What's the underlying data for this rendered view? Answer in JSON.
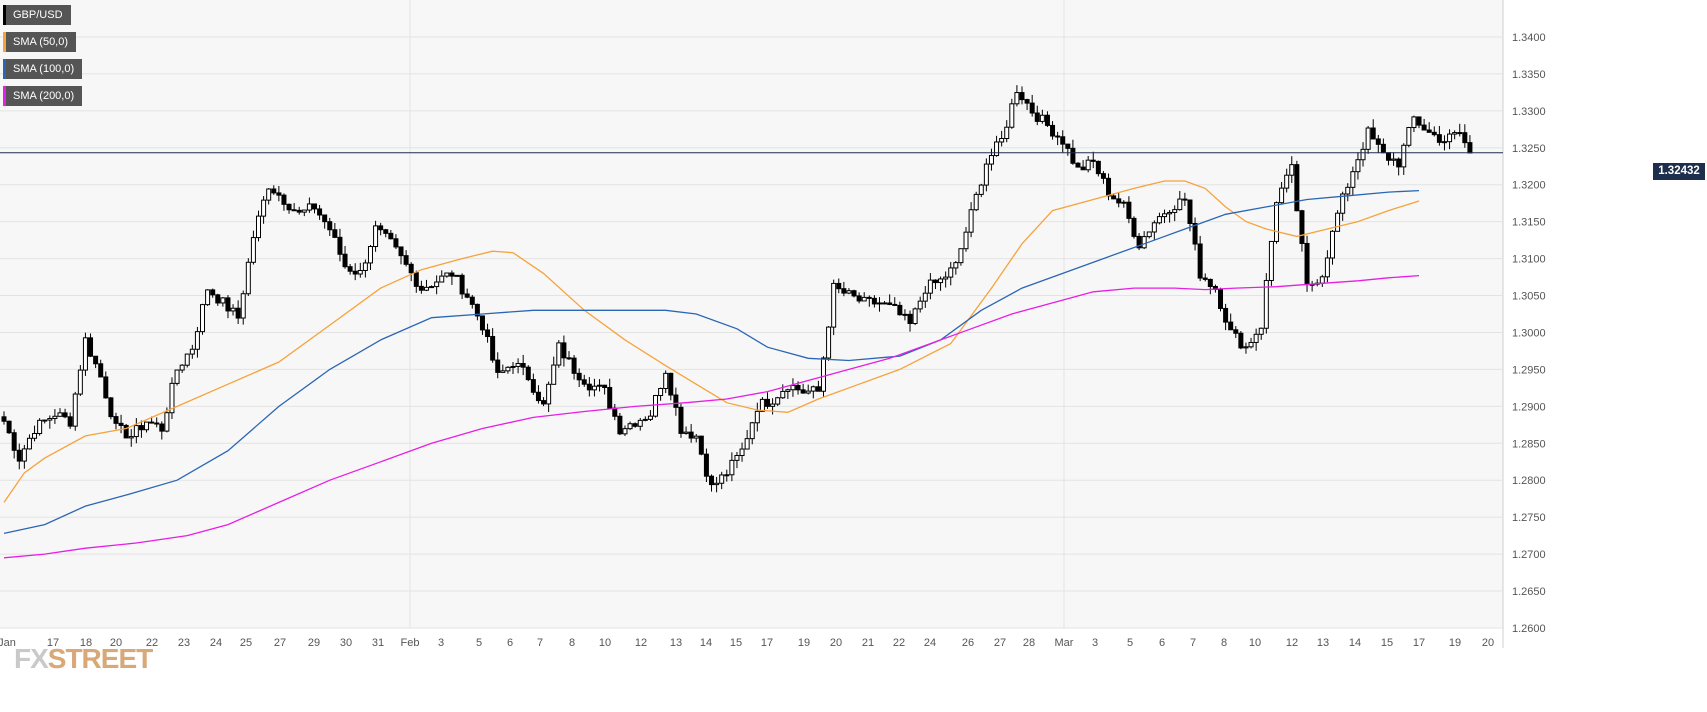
{
  "chart_data": {
    "type": "candlestick",
    "symbol": "GBP/USD",
    "last_price": "1.32432",
    "ylim": [
      1.26,
      1.345
    ],
    "y_ticks": [
      "1.2600",
      "1.2650",
      "1.2700",
      "1.2750",
      "1.2800",
      "1.2850",
      "1.2900",
      "1.2950",
      "1.3000",
      "1.3050",
      "1.3100",
      "1.3150",
      "1.3200",
      "1.3250",
      "1.3300",
      "1.3350",
      "1.3400"
    ],
    "x_ticks": [
      "Jan",
      "17",
      "18",
      "20",
      "22",
      "23",
      "24",
      "25",
      "27",
      "29",
      "30",
      "31",
      "Feb",
      "3",
      "5",
      "6",
      "7",
      "8",
      "10",
      "12",
      "13",
      "14",
      "15",
      "17",
      "19",
      "20",
      "21",
      "22",
      "24",
      "26",
      "27",
      "28",
      "Mar",
      "3",
      "5",
      "6",
      "7",
      "8",
      "10",
      "12",
      "13",
      "14",
      "15",
      "17",
      "19",
      "20"
    ],
    "legend": [
      {
        "label": "GBP/USD",
        "color": "#000000"
      },
      {
        "label": "SMA (50,0)",
        "color": "#f7a23b"
      },
      {
        "label": "SMA (100,0)",
        "color": "#2a66b4"
      },
      {
        "label": "SMA (200,0)",
        "color": "#e61ee6"
      }
    ],
    "series": [
      {
        "name": "SMA (50,0)",
        "color": "#f7a23b",
        "points": [
          [
            0,
            1.277
          ],
          [
            4,
            1.281
          ],
          [
            8,
            1.283
          ],
          [
            16,
            1.286
          ],
          [
            24,
            1.287
          ],
          [
            34,
            1.29
          ],
          [
            44,
            1.293
          ],
          [
            54,
            1.296
          ],
          [
            64,
            1.301
          ],
          [
            74,
            1.306
          ],
          [
            82,
            1.3085
          ],
          [
            90,
            1.31
          ],
          [
            96,
            1.311
          ],
          [
            100,
            1.3108
          ],
          [
            106,
            1.308
          ],
          [
            114,
            1.303
          ],
          [
            122,
            1.299
          ],
          [
            130,
            1.2955
          ],
          [
            136,
            1.293
          ],
          [
            142,
            1.2905
          ],
          [
            148,
            1.2895
          ],
          [
            154,
            1.2892
          ],
          [
            160,
            1.291
          ],
          [
            168,
            1.293
          ],
          [
            176,
            1.295
          ],
          [
            186,
            1.2985
          ],
          [
            194,
            1.306
          ],
          [
            200,
            1.312
          ],
          [
            206,
            1.3165
          ],
          [
            214,
            1.318
          ],
          [
            222,
            1.3195
          ],
          [
            228,
            1.3205
          ],
          [
            232,
            1.3205
          ],
          [
            236,
            1.3195
          ],
          [
            240,
            1.317
          ],
          [
            244,
            1.315
          ],
          [
            248,
            1.314
          ],
          [
            254,
            1.313
          ],
          [
            260,
            1.314
          ],
          [
            266,
            1.315
          ],
          [
            272,
            1.3165
          ],
          [
            278,
            1.3178
          ]
        ]
      },
      {
        "name": "SMA (100,0)",
        "color": "#2a66b4",
        "points": [
          [
            0,
            1.2728
          ],
          [
            8,
            1.274
          ],
          [
            16,
            1.2765
          ],
          [
            24,
            1.278
          ],
          [
            34,
            1.28
          ],
          [
            44,
            1.284
          ],
          [
            54,
            1.29
          ],
          [
            64,
            1.295
          ],
          [
            74,
            1.299
          ],
          [
            84,
            1.302
          ],
          [
            94,
            1.3025
          ],
          [
            104,
            1.303
          ],
          [
            112,
            1.303
          ],
          [
            120,
            1.303
          ],
          [
            130,
            1.303
          ],
          [
            136,
            1.3025
          ],
          [
            144,
            1.3005
          ],
          [
            150,
            1.298
          ],
          [
            158,
            1.2965
          ],
          [
            166,
            1.2962
          ],
          [
            176,
            1.2968
          ],
          [
            184,
            1.299
          ],
          [
            192,
            1.303
          ],
          [
            200,
            1.306
          ],
          [
            208,
            1.308
          ],
          [
            216,
            1.31
          ],
          [
            224,
            1.312
          ],
          [
            232,
            1.314
          ],
          [
            240,
            1.316
          ],
          [
            248,
            1.317
          ],
          [
            256,
            1.318
          ],
          [
            264,
            1.3185
          ],
          [
            272,
            1.319
          ],
          [
            278,
            1.3192
          ]
        ]
      },
      {
        "name": "SMA (200,0)",
        "color": "#e61ee6",
        "points": [
          [
            0,
            1.2695
          ],
          [
            8,
            1.27
          ],
          [
            16,
            1.2708
          ],
          [
            26,
            1.2715
          ],
          [
            36,
            1.2725
          ],
          [
            44,
            1.274
          ],
          [
            54,
            1.277
          ],
          [
            64,
            1.28
          ],
          [
            74,
            1.2825
          ],
          [
            84,
            1.285
          ],
          [
            94,
            1.287
          ],
          [
            104,
            1.2885
          ],
          [
            114,
            1.2893
          ],
          [
            124,
            1.29
          ],
          [
            134,
            1.2905
          ],
          [
            142,
            1.291
          ],
          [
            150,
            1.292
          ],
          [
            158,
            1.2935
          ],
          [
            166,
            1.295
          ],
          [
            174,
            1.2965
          ],
          [
            182,
            1.2985
          ],
          [
            190,
            1.3005
          ],
          [
            198,
            1.3025
          ],
          [
            206,
            1.304
          ],
          [
            214,
            1.3055
          ],
          [
            222,
            1.306
          ],
          [
            230,
            1.306
          ],
          [
            236,
            1.3058
          ],
          [
            242,
            1.306
          ],
          [
            250,
            1.3062
          ],
          [
            258,
            1.3066
          ],
          [
            266,
            1.307
          ],
          [
            272,
            1.3074
          ],
          [
            278,
            1.3077
          ]
        ]
      }
    ],
    "waypoints": [
      [
        0,
        1.288
      ],
      [
        3,
        1.283
      ],
      [
        6,
        1.287
      ],
      [
        10,
        1.289
      ],
      [
        13,
        1.288
      ],
      [
        16,
        1.299
      ],
      [
        19,
        1.294
      ],
      [
        22,
        1.287
      ],
      [
        25,
        1.286
      ],
      [
        28,
        1.288
      ],
      [
        31,
        1.287
      ],
      [
        34,
        1.295
      ],
      [
        37,
        1.298
      ],
      [
        40,
        1.306
      ],
      [
        43,
        1.304
      ],
      [
        46,
        1.302
      ],
      [
        49,
        1.313
      ],
      [
        52,
        1.32
      ],
      [
        55,
        1.318
      ],
      [
        58,
        1.316
      ],
      [
        61,
        1.317
      ],
      [
        64,
        1.314
      ],
      [
        67,
        1.309
      ],
      [
        70,
        1.308
      ],
      [
        73,
        1.314
      ],
      [
        76,
        1.312
      ],
      [
        79,
        1.309
      ],
      [
        82,
        1.306
      ],
      [
        85,
        1.307
      ],
      [
        88,
        1.308
      ],
      [
        91,
        1.305
      ],
      [
        94,
        1.301
      ],
      [
        97,
        1.294
      ],
      [
        100,
        1.296
      ],
      [
        103,
        1.294
      ],
      [
        106,
        1.29
      ],
      [
        109,
        1.298
      ],
      [
        112,
        1.295
      ],
      [
        115,
        1.293
      ],
      [
        118,
        1.292
      ],
      [
        121,
        1.287
      ],
      [
        124,
        1.288
      ],
      [
        127,
        1.289
      ],
      [
        130,
        1.295
      ],
      [
        133,
        1.287
      ],
      [
        136,
        1.286
      ],
      [
        139,
        1.279
      ],
      [
        142,
        1.281
      ],
      [
        145,
        1.284
      ],
      [
        148,
        1.29
      ],
      [
        151,
        1.291
      ],
      [
        154,
        1.293
      ],
      [
        157,
        1.292
      ],
      [
        160,
        1.292
      ],
      [
        163,
        1.306
      ],
      [
        166,
        1.305
      ],
      [
        169,
        1.304
      ],
      [
        172,
        1.304
      ],
      [
        175,
        1.303
      ],
      [
        178,
        1.301
      ],
      [
        181,
        1.306
      ],
      [
        184,
        1.307
      ],
      [
        187,
        1.309
      ],
      [
        190,
        1.316
      ],
      [
        193,
        1.323
      ],
      [
        196,
        1.326
      ],
      [
        199,
        1.333
      ],
      [
        202,
        1.33
      ],
      [
        205,
        1.328
      ],
      [
        208,
        1.326
      ],
      [
        211,
        1.322
      ],
      [
        214,
        1.323
      ],
      [
        217,
        1.319
      ],
      [
        220,
        1.317
      ],
      [
        223,
        1.312
      ],
      [
        226,
        1.315
      ],
      [
        229,
        1.317
      ],
      [
        232,
        1.318
      ],
      [
        235,
        1.308
      ],
      [
        238,
        1.306
      ],
      [
        241,
        1.3
      ],
      [
        244,
        1.298
      ],
      [
        247,
        1.301
      ],
      [
        250,
        1.318
      ],
      [
        253,
        1.322
      ],
      [
        256,
        1.306
      ],
      [
        259,
        1.308
      ],
      [
        262,
        1.316
      ],
      [
        265,
        1.322
      ],
      [
        268,
        1.327
      ],
      [
        271,
        1.324
      ],
      [
        274,
        1.323
      ],
      [
        277,
        1.329
      ],
      [
        280,
        1.327
      ],
      [
        283,
        1.326
      ],
      [
        286,
        1.327
      ],
      [
        288,
        1.3243
      ]
    ]
  },
  "watermark": {
    "prefix": "FX",
    "suffix": "STREET"
  }
}
